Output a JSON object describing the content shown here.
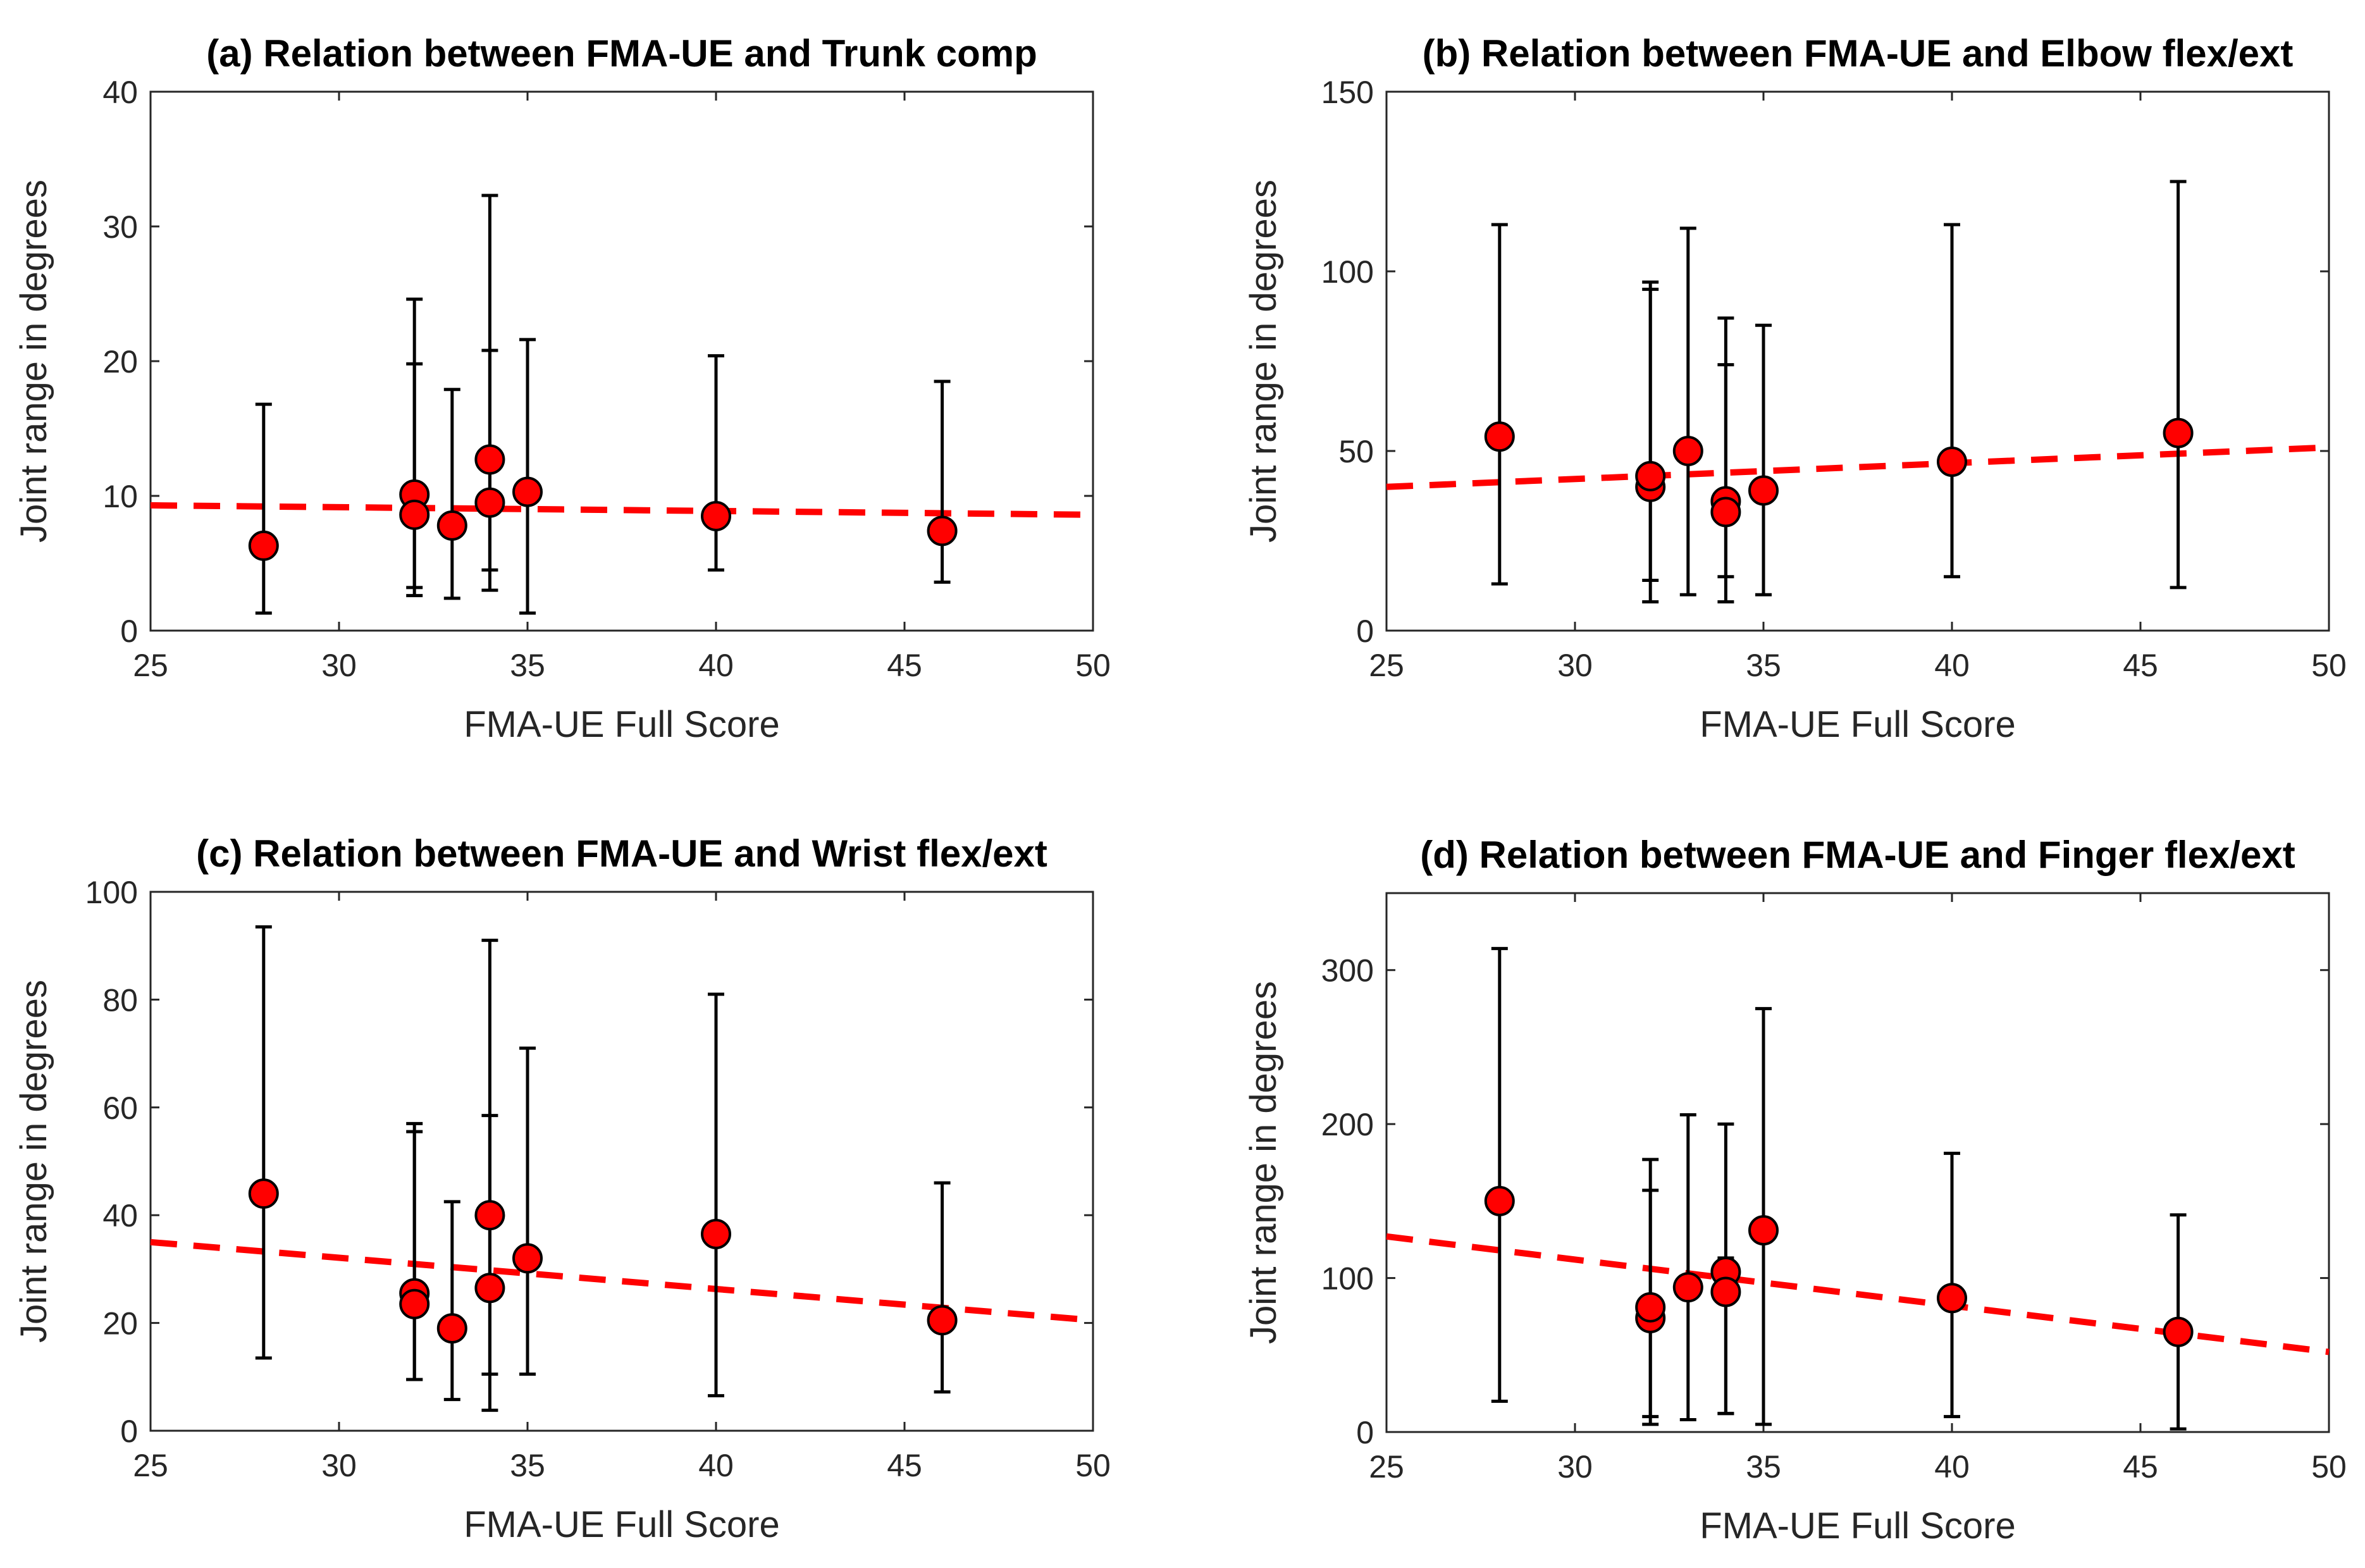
{
  "chart_data": [
    {
      "type": "scatter",
      "title": "(a) Relation between FMA-UE and Trunk comp",
      "xlabel": "FMA-UE Full Score",
      "ylabel": "Joint range in degrees",
      "xlim": [
        25,
        50
      ],
      "ylim": [
        0,
        40
      ],
      "xticks": [
        25,
        30,
        35,
        40,
        45,
        50
      ],
      "yticks": [
        0,
        10,
        20,
        30,
        40
      ],
      "grid": "y",
      "points": [
        {
          "x": 28,
          "y": 6.3,
          "low": 1.3,
          "high": 16.8
        },
        {
          "x": 32,
          "y": 10.1,
          "low": 3.2,
          "high": 19.8
        },
        {
          "x": 32,
          "y": 8.6,
          "low": 2.6,
          "high": 24.6
        },
        {
          "x": 33,
          "y": 7.8,
          "low": 2.4,
          "high": 17.9
        },
        {
          "x": 34,
          "y": 12.7,
          "low": 4.5,
          "high": 20.8
        },
        {
          "x": 34,
          "y": 9.5,
          "low": 3.0,
          "high": 32.3
        },
        {
          "x": 35,
          "y": 10.3,
          "low": 1.3,
          "high": 21.6
        },
        {
          "x": 40,
          "y": 8.5,
          "low": 4.5,
          "high": 20.4
        },
        {
          "x": 46,
          "y": 7.4,
          "low": 3.6,
          "high": 18.5
        }
      ],
      "trend": {
        "x": [
          25,
          50
        ],
        "y": [
          9.3,
          8.6
        ]
      }
    },
    {
      "type": "scatter",
      "title": "(b) Relation between FMA-UE and Elbow flex/ext",
      "xlabel": "FMA-UE Full Score",
      "ylabel": "Joint range in degrees",
      "xlim": [
        25,
        50
      ],
      "ylim": [
        0,
        150
      ],
      "xticks": [
        25,
        30,
        35,
        40,
        45,
        50
      ],
      "yticks": [
        0,
        50,
        100,
        150
      ],
      "grid": "y",
      "points": [
        {
          "x": 28,
          "y": 54,
          "low": 13,
          "high": 113
        },
        {
          "x": 32,
          "y": 40,
          "low": 8,
          "high": 95
        },
        {
          "x": 32,
          "y": 43,
          "low": 14,
          "high": 97
        },
        {
          "x": 33,
          "y": 50,
          "low": 10,
          "high": 112
        },
        {
          "x": 34,
          "y": 36,
          "low": 15,
          "high": 74
        },
        {
          "x": 34,
          "y": 33,
          "low": 8,
          "high": 87
        },
        {
          "x": 35,
          "y": 39,
          "low": 10,
          "high": 85
        },
        {
          "x": 40,
          "y": 47,
          "low": 15,
          "high": 113
        },
        {
          "x": 46,
          "y": 55,
          "low": 12,
          "high": 125
        }
      ],
      "trend": {
        "x": [
          25,
          50
        ],
        "y": [
          40,
          51
        ]
      }
    },
    {
      "type": "scatter",
      "title": "(c) Relation between FMA-UE and Wrist flex/ext",
      "xlabel": "FMA-UE Full Score",
      "ylabel": "Joint range in degrees",
      "xlim": [
        25,
        50
      ],
      "ylim": [
        0,
        100
      ],
      "xticks": [
        25,
        30,
        35,
        40,
        45,
        50
      ],
      "yticks": [
        0,
        20,
        40,
        60,
        80,
        100
      ],
      "grid": "y",
      "points": [
        {
          "x": 28,
          "y": 44,
          "low": 13.5,
          "high": 93.5
        },
        {
          "x": 32,
          "y": 25.5,
          "low": 9.5,
          "high": 57
        },
        {
          "x": 32,
          "y": 23.5,
          "low": 9.5,
          "high": 55.5
        },
        {
          "x": 33,
          "y": 19,
          "low": 5.8,
          "high": 42.5
        },
        {
          "x": 34,
          "y": 40,
          "low": 3.8,
          "high": 91
        },
        {
          "x": 34,
          "y": 26.5,
          "low": 10.5,
          "high": 58.5
        },
        {
          "x": 35,
          "y": 32,
          "low": 10.5,
          "high": 71
        },
        {
          "x": 40,
          "y": 36.5,
          "low": 6.5,
          "high": 81
        },
        {
          "x": 46,
          "y": 20.5,
          "low": 7.2,
          "high": 46
        }
      ],
      "trend": {
        "x": [
          25,
          50
        ],
        "y": [
          35,
          20.5
        ]
      }
    },
    {
      "type": "scatter",
      "title": "(d) Relation between FMA-UE and Finger flex/ext",
      "xlabel": "FMA-UE Full Score",
      "ylabel": "Joint range in degrees",
      "xlim": [
        25,
        50
      ],
      "ylim": [
        0,
        350
      ],
      "xticks": [
        25,
        30,
        35,
        40,
        45,
        50
      ],
      "yticks": [
        0,
        100,
        200,
        300
      ],
      "grid": "y",
      "points": [
        {
          "x": 28,
          "y": 150,
          "low": 20,
          "high": 314
        },
        {
          "x": 32,
          "y": 74,
          "low": 5,
          "high": 177
        },
        {
          "x": 32,
          "y": 81,
          "low": 10,
          "high": 157
        },
        {
          "x": 33,
          "y": 94,
          "low": 8,
          "high": 206
        },
        {
          "x": 34,
          "y": 104,
          "low": 12,
          "high": 113
        },
        {
          "x": 34,
          "y": 91,
          "low": 12,
          "high": 200
        },
        {
          "x": 35,
          "y": 131,
          "low": 5,
          "high": 275
        },
        {
          "x": 40,
          "y": 87,
          "low": 10,
          "high": 181
        },
        {
          "x": 46,
          "y": 65,
          "low": 2,
          "high": 141
        }
      ],
      "trend": {
        "x": [
          25,
          50
        ],
        "y": [
          127,
          52
        ]
      }
    }
  ],
  "style": {
    "marker_color": "#ff0000",
    "trend_color": "#ff0000",
    "errorbar_color": "#000000",
    "grid_color": "#dcdcdc"
  }
}
